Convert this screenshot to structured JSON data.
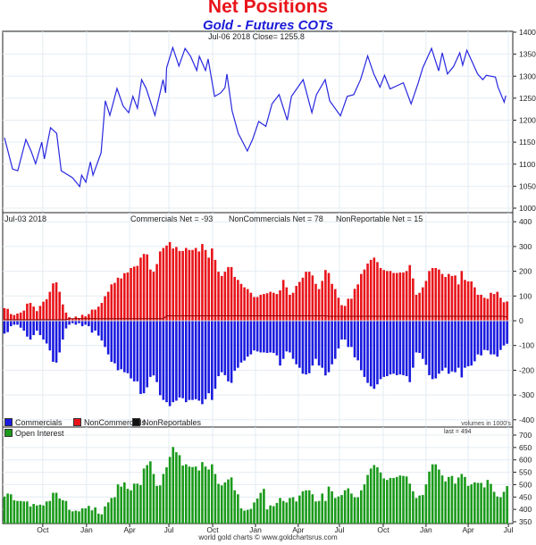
{
  "header": {
    "title": "Net Positions",
    "subtitle": "Gold - Futures COTs"
  },
  "colors": {
    "price": "#2828e0",
    "commercials": "#1a1ae0",
    "noncommercials": "#e8141a",
    "nonreportables": "#8b0000",
    "open_interest": "#1a9a1a"
  },
  "footer": {
    "credit": "world gold charts © www.goldchartsrus.com"
  },
  "chart_data": [
    {
      "type": "line",
      "panel": "price",
      "label": "Jul-06  2018   Close= 1255.8",
      "ylim": [
        1000,
        1400
      ],
      "yticks": [
        1000,
        1050,
        1100,
        1150,
        1200,
        1250,
        1300,
        1350,
        1400
      ],
      "x_unit": "weeks since start",
      "points": [
        [
          0,
          1160
        ],
        [
          2.5,
          1089
        ],
        [
          4.1,
          1085
        ],
        [
          6.6,
          1156
        ],
        [
          8.2,
          1130
        ],
        [
          9.6,
          1101
        ],
        [
          11.5,
          1150
        ],
        [
          12.3,
          1112
        ],
        [
          14.2,
          1183
        ],
        [
          16.1,
          1170
        ],
        [
          17.5,
          1085
        ],
        [
          21,
          1069
        ],
        [
          23.2,
          1049
        ],
        [
          23.8,
          1075
        ],
        [
          25.1,
          1059
        ],
        [
          26.5,
          1105
        ],
        [
          27.3,
          1075
        ],
        [
          29.8,
          1126
        ],
        [
          31.1,
          1244
        ],
        [
          32.5,
          1211
        ],
        [
          34.7,
          1272
        ],
        [
          36.6,
          1232
        ],
        [
          38.3,
          1217
        ],
        [
          39.6,
          1254
        ],
        [
          41,
          1227
        ],
        [
          42.3,
          1292
        ],
        [
          43.7,
          1272
        ],
        [
          46.4,
          1211
        ],
        [
          48.9,
          1292
        ],
        [
          49.7,
          1262
        ],
        [
          50,
          1319
        ],
        [
          51.9,
          1365
        ],
        [
          53.8,
          1323
        ],
        [
          55.7,
          1363
        ],
        [
          57.4,
          1345
        ],
        [
          59.3,
          1313
        ],
        [
          60.1,
          1345
        ],
        [
          62,
          1313
        ],
        [
          62.8,
          1339
        ],
        [
          64.8,
          1254
        ],
        [
          66.7,
          1262
        ],
        [
          68,
          1274
        ],
        [
          68.6,
          1305
        ],
        [
          70.2,
          1221
        ],
        [
          72.1,
          1170
        ],
        [
          74.9,
          1130
        ],
        [
          76.5,
          1156
        ],
        [
          78.4,
          1197
        ],
        [
          80.6,
          1186
        ],
        [
          82.5,
          1237
        ],
        [
          84.7,
          1258
        ],
        [
          87.2,
          1200
        ],
        [
          88.5,
          1254
        ],
        [
          92.1,
          1292
        ],
        [
          94.8,
          1217
        ],
        [
          96.2,
          1258
        ],
        [
          98.9,
          1292
        ],
        [
          100.3,
          1244
        ],
        [
          103.6,
          1210
        ],
        [
          105.7,
          1254
        ],
        [
          107.7,
          1258
        ],
        [
          109.8,
          1292
        ],
        [
          112,
          1346
        ],
        [
          113.9,
          1305
        ],
        [
          115.8,
          1275
        ],
        [
          117.2,
          1302
        ],
        [
          118.9,
          1271
        ],
        [
          123,
          1285
        ],
        [
          125.4,
          1237
        ],
        [
          127.6,
          1285
        ],
        [
          129,
          1319
        ],
        [
          131.7,
          1363
        ],
        [
          133.9,
          1312
        ],
        [
          135,
          1353
        ],
        [
          136.6,
          1305
        ],
        [
          138.5,
          1322
        ],
        [
          140.4,
          1353
        ],
        [
          141.3,
          1325
        ],
        [
          142.6,
          1359
        ],
        [
          145.9,
          1305
        ],
        [
          147.5,
          1292
        ],
        [
          148.6,
          1302
        ],
        [
          151.4,
          1298
        ],
        [
          152.2,
          1275
        ],
        [
          154.1,
          1241
        ],
        [
          154.6,
          1255.8
        ]
      ]
    },
    {
      "type": "bar",
      "panel": "net_positions",
      "date_label": "Jul-03  2018",
      "summary": {
        "commercials": "Commercials Net = -93",
        "noncommercials": "NonCommercials Net = 78",
        "nonreportables": "NonReportable Net = 15"
      },
      "legend": [
        "Commercials",
        "NonCommercials",
        "NonReportables"
      ],
      "ylim": [
        -400,
        400
      ],
      "yticks": [
        -400,
        -300,
        -200,
        -100,
        0,
        100,
        200,
        300,
        400
      ],
      "note": "volumes in 1000's",
      "series": [
        {
          "name": "NonCommercials",
          "values": [
            51,
            48,
            27,
            23,
            29,
            33,
            41,
            69,
            72,
            57,
            39,
            60,
            77,
            87,
            117,
            151,
            155,
            117,
            66,
            33,
            14,
            8,
            17,
            11,
            24,
            18,
            27,
            45,
            45,
            57,
            72,
            99,
            117,
            147,
            153,
            174,
            171,
            192,
            195,
            213,
            219,
            222,
            255,
            270,
            268,
            207,
            198,
            229,
            280,
            294,
            304,
            318,
            292,
            298,
            282,
            282,
            294,
            286,
            286,
            294,
            280,
            310,
            286,
            255,
            292,
            246,
            198,
            181,
            198,
            217,
            217,
            177,
            165,
            149,
            135,
            128,
            113,
            96,
            96,
            105,
            108,
            111,
            117,
            113,
            108,
            123,
            165,
            135,
            105,
            113,
            141,
            157,
            174,
            198,
            198,
            183,
            149,
            128,
            161,
            205,
            193,
            149,
            128,
            93,
            63,
            60,
            89,
            89,
            129,
            147,
            189,
            207,
            231,
            246,
            255,
            237,
            213,
            205,
            201,
            201,
            193,
            193,
            195,
            195,
            201,
            225,
            171,
            105,
            113,
            135,
            161,
            201,
            213,
            213,
            207,
            189,
            177,
            189,
            181,
            183,
            147,
            201,
            165,
            159,
            159,
            135,
            105,
            105,
            93,
            89,
            113,
            108,
            117,
            93,
            75,
            78
          ]
        },
        {
          "name": "Commercials",
          "values": [
            -52,
            -46,
            -22,
            -16,
            -16,
            -28,
            -40,
            -64,
            -76,
            -58,
            -40,
            -58,
            -76,
            -92,
            -120,
            -166,
            -169,
            -128,
            -76,
            -31,
            -16,
            -10,
            -16,
            -10,
            -22,
            -16,
            -22,
            -48,
            -40,
            -60,
            -80,
            -106,
            -136,
            -166,
            -172,
            -200,
            -196,
            -208,
            -212,
            -233,
            -245,
            -245,
            -296,
            -293,
            -269,
            -227,
            -221,
            -248,
            -301,
            -320,
            -329,
            -345,
            -329,
            -323,
            -310,
            -313,
            -329,
            -320,
            -320,
            -317,
            -323,
            -337,
            -317,
            -293,
            -320,
            -275,
            -224,
            -208,
            -220,
            -245,
            -251,
            -202,
            -190,
            -169,
            -161,
            -145,
            -136,
            -120,
            -124,
            -128,
            -128,
            -130,
            -128,
            -130,
            -140,
            -181,
            -154,
            -124,
            -128,
            -154,
            -176,
            -190,
            -214,
            -217,
            -212,
            -181,
            -154,
            -181,
            -190,
            -221,
            -208,
            -176,
            -154,
            -112,
            -76,
            -76,
            -106,
            -106,
            -148,
            -160,
            -200,
            -227,
            -251,
            -265,
            -275,
            -257,
            -236,
            -227,
            -224,
            -217,
            -214,
            -220,
            -217,
            -220,
            -224,
            -248,
            -190,
            -128,
            -130,
            -154,
            -178,
            -220,
            -236,
            -233,
            -214,
            -202,
            -190,
            -214,
            -205,
            -208,
            -190,
            -229,
            -190,
            -184,
            -181,
            -164,
            -136,
            -140,
            -118,
            -120,
            -136,
            -136,
            -145,
            -118,
            -100,
            -93
          ]
        },
        {
          "name": "NonReportables",
          "values": [
            4,
            4,
            4,
            4,
            4,
            4,
            4,
            4,
            4,
            4,
            4,
            4,
            4,
            4,
            4,
            4,
            4,
            4,
            4,
            4,
            8,
            8,
            8,
            8,
            8,
            8,
            8,
            8,
            8,
            8,
            8,
            8,
            8,
            8,
            8,
            8,
            8,
            8,
            8,
            8,
            8,
            8,
            8,
            8,
            8,
            8,
            8,
            8,
            8,
            8,
            20,
            20,
            20,
            20,
            20,
            20,
            20,
            20,
            20,
            20,
            20,
            20,
            20,
            20,
            20,
            20,
            20,
            20,
            20,
            20,
            20,
            20,
            20,
            20,
            20,
            20,
            20,
            20,
            20,
            20,
            20,
            20,
            20,
            20,
            20,
            20,
            20,
            20,
            20,
            20,
            20,
            20,
            20,
            20,
            20,
            20,
            20,
            20,
            20,
            20,
            18,
            18,
            18,
            18,
            18,
            18,
            18,
            18,
            18,
            18,
            18,
            18,
            18,
            18,
            18,
            18,
            18,
            18,
            18,
            18,
            18,
            18,
            18,
            18,
            18,
            18,
            18,
            18,
            18,
            18,
            18,
            18,
            18,
            18,
            18,
            18,
            18,
            18,
            18,
            18,
            18,
            18,
            18,
            18,
            18,
            18,
            18,
            18,
            18,
            18,
            18,
            18,
            18,
            18,
            18,
            15
          ]
        }
      ]
    },
    {
      "type": "bar",
      "panel": "open_interest",
      "legend": [
        "Open Interest"
      ],
      "last_label": "last = 494",
      "ylim": [
        350,
        700
      ],
      "yticks": [
        350,
        400,
        450,
        500,
        550,
        600,
        650,
        700
      ],
      "values": [
        452,
        464,
        461,
        437,
        434,
        434,
        432,
        432,
        412,
        422,
        416,
        419,
        416,
        432,
        434,
        467,
        467,
        444,
        437,
        434,
        398,
        392,
        395,
        392,
        404,
        404,
        414,
        396,
        408,
        383,
        380,
        412,
        428,
        446,
        449,
        501,
        492,
        509,
        483,
        477,
        504,
        504,
        498,
        565,
        579,
        594,
        543,
        495,
        497,
        543,
        570,
        612,
        652,
        631,
        619,
        577,
        582,
        573,
        571,
        573,
        557,
        591,
        573,
        561,
        582,
        543,
        503,
        497,
        509,
        521,
        529,
        477,
        461,
        404,
        395,
        398,
        402,
        428,
        444,
        467,
        483,
        400,
        416,
        413,
        426,
        446,
        434,
        428,
        446,
        449,
        432,
        456,
        473,
        477,
        477,
        461,
        432,
        434,
        464,
        434,
        492,
        473,
        446,
        452,
        458,
        477,
        485,
        464,
        449,
        449,
        477,
        501,
        539,
        565,
        579,
        570,
        549,
        525,
        519,
        527,
        527,
        531,
        537,
        535,
        533,
        504,
        473,
        446,
        456,
        458,
        501,
        553,
        582,
        582,
        561,
        537,
        513,
        531,
        535,
        504,
        529,
        543,
        531,
        495,
        501,
        509,
        507,
        507,
        489,
        519,
        503,
        471,
        452,
        449,
        471,
        494
      ]
    }
  ],
  "x_axis": {
    "ticks": [
      {
        "label": "Oct",
        "week": 11.8
      },
      {
        "label": "Jan",
        "week": 25.3
      },
      {
        "label": "Apr",
        "week": 38.6
      },
      {
        "label": "Jul",
        "week": 50.7
      },
      {
        "label": "Oct",
        "week": 64.2
      },
      {
        "label": "Jan",
        "week": 77.4
      },
      {
        "label": "Apr",
        "week": 90.6
      },
      {
        "label": "Jul",
        "week": 103.3
      },
      {
        "label": "Oct",
        "week": 116.8
      },
      {
        "label": "Jan",
        "week": 130
      },
      {
        "label": "Apr",
        "week": 143
      },
      {
        "label": "Jul",
        "week": 155.4
      }
    ]
  }
}
